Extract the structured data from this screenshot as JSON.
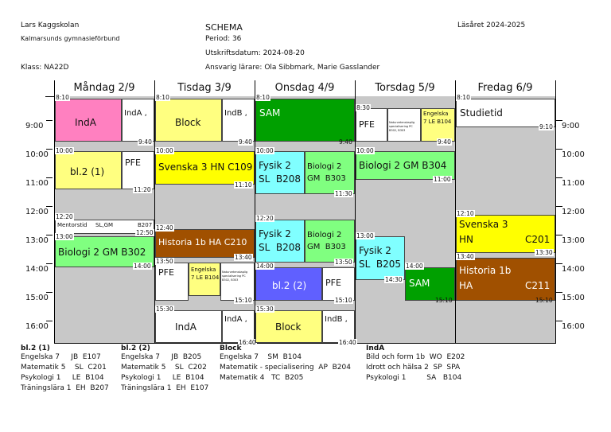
{
  "header": {
    "school": "Lars Kaggskolan",
    "organization": "Kalmarsunds gymnasieförbund",
    "class_label": "Klass: NA22D",
    "title": "SCHEMA",
    "period": "Period: 36",
    "print_date": "Utskriftsdatum: 2024-08-20",
    "teachers": "Ansvarig lärare: Ola Sibbmark, Marie Gasslander",
    "school_year": "Läsåret 2024-2025"
  },
  "days": [
    "Måndag 2/9",
    "Tisdag 3/9",
    "Onsdag 4/9",
    "Torsdag 5/9",
    "Fredag 6/9"
  ],
  "hours": [
    "9:00",
    "10:00",
    "11:00",
    "12:00",
    "13:00",
    "14:00",
    "15:00",
    "16:00"
  ],
  "lessons": {
    "mon_inda": {
      "title": "IndA",
      "side": "IndA ,",
      "start": "8:10",
      "end": "9:40",
      "color": "#ff80c0"
    },
    "mon_bl2": {
      "title": "bl.2 (1)",
      "side": "PFE",
      "start": "10:00",
      "end": "11:20",
      "color": "#ffff80"
    },
    "mon_mentor": {
      "title": "Mentorstid",
      "teacher": "SL,GM",
      "room": "B207",
      "start": "12:20",
      "end": "12:50"
    },
    "mon_bio": {
      "title": "Biologi 2  GM  B302",
      "start": "13:00",
      "end": "14:00",
      "color": "#80ff80"
    },
    "tue_block": {
      "title": "Block",
      "side": "IndB ,",
      "start": "8:10",
      "end": "9:40",
      "color": "#ffff80"
    },
    "tue_sv3": {
      "title": "Svenska 3  HN  C109",
      "start": "10:00",
      "end": "11:10",
      "color": "#ffff00"
    },
    "tue_hist": {
      "title": "Historia 1b   HA   C210",
      "start": "12:40",
      "end": "13:40",
      "color": "#a05000"
    },
    "tue_pfe": {
      "title": "PFE",
      "side": "Engelska 7 LE B104",
      "tiny": "Naturvetenskaplig specialisering PC B302, B303",
      "start": "13:50",
      "end": "15:10"
    },
    "tue_inda": {
      "title": "IndA",
      "side": "IndA ,",
      "start": "15:30",
      "end": "16:40"
    },
    "wed_sam": {
      "title": "SAM",
      "start": "8:10",
      "end": "9:40",
      "color": "#00a000"
    },
    "wed_fys1": {
      "title": "Fysik 2\nSL  B208",
      "side": "Biologi 2\nGM  B303",
      "start": "10:00",
      "end": "11:30"
    },
    "wed_fys2": {
      "title": "Fysik 2\nSL  B208",
      "side": "Biologi 2\nGM  B303",
      "start": "12:20",
      "end": "13:50"
    },
    "wed_bl2": {
      "title": "bl.2 (2)",
      "side": "PFE",
      "start": "14:00",
      "end": "15:10",
      "color": "#6060ff"
    },
    "wed_block": {
      "title": "Block",
      "side": "IndB ,",
      "start": "15:30",
      "end": "16:40",
      "color": "#ffff80"
    },
    "thu_pfe": {
      "title": "PFE",
      "tiny": "Naturvetenskaplig specialisering PC B302, B303",
      "side": "Engelska 7 LE B104",
      "start": "8:30",
      "end": "9:40"
    },
    "thu_bio": {
      "title": "Biologi 2  GM  B304",
      "start": "10:00",
      "end": "11:00",
      "color": "#80ff80"
    },
    "thu_fys": {
      "title": "Fysik 2\nSL  B205",
      "start": "13:00",
      "end": "14:30",
      "color": "#80ffff"
    },
    "thu_sam": {
      "title": "SAM",
      "start": "14:00",
      "end": "15:10",
      "color": "#00a000"
    },
    "fri_studie": {
      "title": "Studietid",
      "start": "8:10",
      "end": "9:10"
    },
    "fri_sv3": {
      "title": "Svenska 3",
      "teacher": "HN",
      "room": "C201",
      "start": "12:10",
      "end": "13:30",
      "color": "#ffff00"
    },
    "fri_hist": {
      "title": "Historia 1b",
      "teacher": "HA",
      "room": "C211",
      "start": "13:40",
      "end": "15:10",
      "color": "#a05000"
    }
  },
  "legend": {
    "bl2_1": {
      "title": "bl.2 (1)",
      "lines": [
        "Engelska 7     JB  E107",
        "Matematik 5    SL  C201",
        "Psykologi 1     LE  B104",
        "Träningslära 1  EH  B207"
      ]
    },
    "bl2_2": {
      "title": "bl.2 (2)",
      "lines": [
        "Engelska 7     JB  B205",
        "Matematik 5    SL  C202",
        "Psykologi 1     LE  B104",
        "Träningslära 1  EH  E107"
      ]
    },
    "block": {
      "title": "Block",
      "lines": [
        "Engelska 7    SM  B104",
        "Matematik - specialisering  AP  B204",
        "Matematik 4   TC  B205"
      ]
    },
    "inda": {
      "title": "IndA",
      "lines": [
        "Bild och form 1b  WO  E202",
        "Idrott och hälsa 2  SP  SPA",
        "Psykologi 1         SA   B104"
      ]
    }
  }
}
